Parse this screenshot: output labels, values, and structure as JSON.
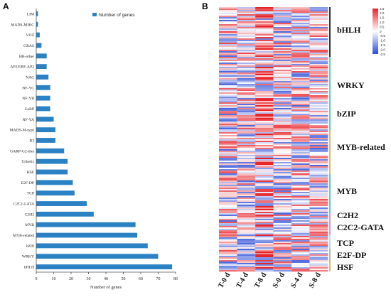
{
  "panels": {
    "a_label": "A",
    "b_label": "B"
  },
  "chart_data": [
    {
      "type": "bar",
      "orientation": "horizontal",
      "categories": [
        "LIM",
        "MADS-MIKC",
        "VOZ",
        "GRAS",
        "HB-other",
        "AP2/ERF-AP2",
        "NAC",
        "NF-YC",
        "NF-YB",
        "GeBP",
        "NF-YA",
        "MADS-M-type",
        "B3",
        "GARP-G2-like",
        "Trihelix",
        "HSF",
        "E2F-DP",
        "TCP",
        "C2C2-GATA",
        "C2H2",
        "MYB",
        "MYB-related",
        "bZIP",
        "WRKY",
        "bHLH"
      ],
      "values": [
        1,
        1,
        2,
        3,
        6,
        6,
        7,
        8,
        8,
        8,
        10,
        11,
        11,
        16,
        18,
        18,
        21,
        22,
        29,
        33,
        57,
        58,
        64,
        70,
        78
      ],
      "series": [
        {
          "name": "Number of genes"
        }
      ],
      "xlabel": "Number of genes",
      "xlim": [
        0,
        80
      ],
      "xticks": [
        0,
        10,
        20,
        30,
        40,
        50,
        60,
        70,
        80
      ],
      "legend_position": "top",
      "color": "#2a82c4",
      "grid": false
    },
    {
      "type": "heatmap",
      "columns": [
        "T-0 d",
        "T-4 d",
        "T-8 d",
        "S-0 d",
        "S-4 d",
        "S-8 d"
      ],
      "families": [
        "bHLH",
        "WRKY",
        "bZIP",
        "MYB-related",
        "MYB",
        "C2H2",
        "C2C2-GATA",
        "TCP",
        "E2F-DP",
        "HSF"
      ],
      "family_colors": [
        "#000000",
        "#2ec4b6",
        "#2ec4b6",
        "#e8a33d",
        "#2ec4b6",
        "#e07ad0",
        "#e07ad0",
        "#9bd8f0",
        "#a6a6a6",
        "#e8a33d"
      ],
      "colorbar_ticks": [
        "2.5",
        "2.0",
        "1.5",
        "1.0",
        "0.5",
        "0",
        "-0.5",
        "-1.0",
        "-1.5",
        "-2.0",
        "-2.5"
      ],
      "colorbar_range": [
        -2.5,
        2.5
      ],
      "colormap": [
        "#2a4bd7",
        "#ffffff",
        "#e8242a"
      ]
    }
  ]
}
